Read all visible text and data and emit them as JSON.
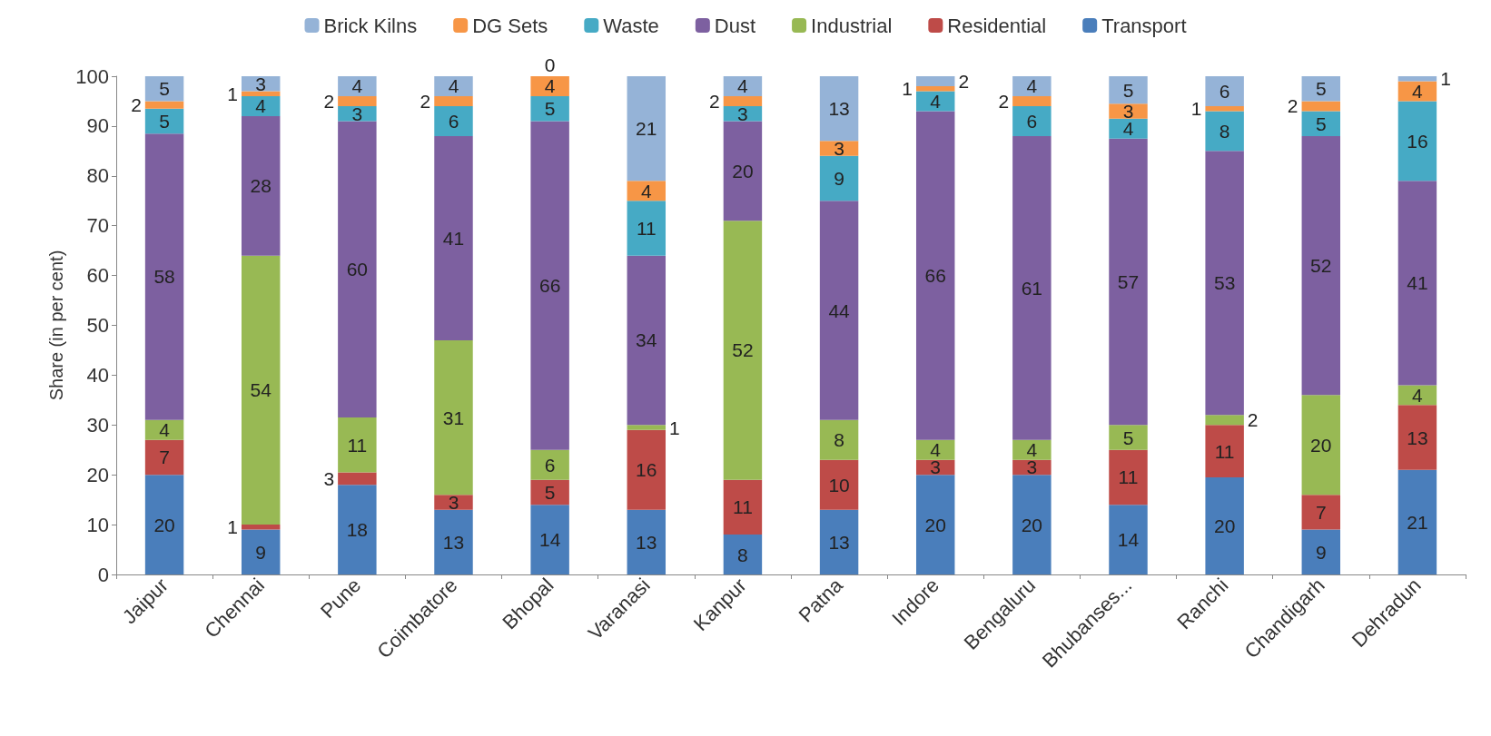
{
  "chart_data": {
    "type": "bar",
    "stacked": true,
    "ylabel": "Share (in per cent)",
    "categories": [
      "Jaipur",
      "Chennai",
      "Pune",
      "Coimbatore",
      "Bhopal",
      "Varanasi",
      "Kanpur",
      "Patna",
      "Indore",
      "Bengaluru",
      "Bhubanses...",
      "Ranchi",
      "Chandigarh",
      "Dehradun"
    ],
    "series": [
      {
        "name": "Transport",
        "color": "#4a7ebb",
        "values": [
          20,
          9,
          18,
          13,
          14,
          13,
          8,
          13,
          20,
          20,
          14,
          19.5,
          9,
          21
        ],
        "value_labels": [
          "20",
          "9",
          "18",
          "13",
          "14",
          "13",
          "8",
          "13",
          "20",
          "20",
          "14",
          "20",
          "9",
          "21"
        ]
      },
      {
        "name": "Residential",
        "color": "#be4b48",
        "values": [
          7,
          1,
          2.5,
          3,
          5,
          16,
          11,
          10,
          3,
          3,
          11,
          10.5,
          7,
          13
        ],
        "value_labels": [
          "7",
          "1",
          "3",
          "3",
          "5",
          "16",
          "11",
          "10",
          "3",
          "3",
          "11",
          "11",
          "7",
          "13"
        ]
      },
      {
        "name": "Industrial",
        "color": "#98b954",
        "values": [
          4,
          54,
          11,
          31,
          6,
          1,
          52,
          8,
          4,
          4,
          5,
          2,
          20,
          4
        ],
        "value_labels": [
          "4",
          "54",
          "11",
          "31",
          "6",
          "1",
          "52",
          "8",
          "4",
          "4",
          "5",
          "2",
          "20",
          "4"
        ]
      },
      {
        "name": "Dust",
        "color": "#7d60a0",
        "values": [
          57.5,
          28,
          59.5,
          41,
          66,
          34,
          20,
          44,
          66,
          61,
          57.5,
          53,
          52,
          41
        ],
        "value_labels": [
          "58",
          "28",
          "60",
          "41",
          "66",
          "34",
          "20",
          "44",
          "66",
          "61",
          "57",
          "53",
          "52",
          "41"
        ]
      },
      {
        "name": "Waste",
        "color": "#46aac5",
        "values": [
          5,
          4,
          3,
          6,
          5,
          11,
          3,
          9,
          4,
          6,
          4,
          8,
          5,
          16
        ],
        "value_labels": [
          "5",
          "4",
          "3",
          "6",
          "5",
          "11",
          "3",
          "9",
          "4",
          "6",
          "4",
          "8",
          "5",
          "16"
        ]
      },
      {
        "name": "DG Sets",
        "color": "#f79646",
        "values": [
          1.5,
          1,
          2,
          2,
          4,
          4,
          2,
          3,
          1,
          2,
          3,
          1,
          2,
          4
        ],
        "value_labels": [
          "2",
          "1",
          "2",
          "2",
          "4",
          "4",
          "2",
          "3",
          "1",
          "2",
          "3",
          "1",
          "2",
          "4"
        ]
      },
      {
        "name": "Brick Kilns",
        "color": "#95b3d7",
        "values": [
          5,
          3,
          4,
          4,
          0,
          21,
          4,
          13,
          2,
          4,
          5.5,
          6,
          5,
          1
        ],
        "value_labels": [
          "5",
          "3",
          "4",
          "4",
          "0",
          "21",
          "4",
          "13",
          "2",
          "4",
          "5",
          "6",
          "5",
          "1"
        ]
      }
    ],
    "ylim": [
      0,
      100
    ],
    "yticks": [
      0,
      10,
      20,
      30,
      40,
      50,
      60,
      70,
      80,
      90,
      100
    ],
    "grid": false,
    "legend": "top"
  }
}
